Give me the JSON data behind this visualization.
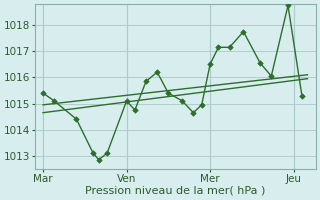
{
  "background_color": "#d8eeee",
  "grid_color": "#b0cccc",
  "line_color": "#2d6e2d",
  "marker_color": "#2d6e2d",
  "title": "Pression niveau de la mer( hPa )",
  "x_tick_labels": [
    "Mar",
    "Ven",
    "Mer",
    "Jeu"
  ],
  "x_tick_positions": [
    0,
    3,
    6,
    9
  ],
  "ylim": [
    1012.5,
    1018.8
  ],
  "yticks": [
    1013,
    1014,
    1015,
    1016,
    1017,
    1018
  ],
  "line1_x": [
    0.0,
    0.4,
    1.2,
    1.8,
    2.0,
    2.3,
    3.0,
    3.3,
    3.7,
    4.1,
    4.5,
    5.0,
    5.4,
    5.7,
    6.0,
    6.3,
    6.7,
    7.2,
    7.8,
    8.2,
    8.8,
    9.3
  ],
  "line1_y": [
    1015.4,
    1015.1,
    1014.4,
    1013.1,
    1012.85,
    1013.1,
    1015.1,
    1014.75,
    1015.85,
    1016.2,
    1015.4,
    1015.1,
    1014.65,
    1014.95,
    1016.5,
    1017.15,
    1017.15,
    1017.75,
    1016.55,
    1016.05,
    1018.75,
    1015.3
  ],
  "trend1_x": [
    0.0,
    9.5
  ],
  "trend1_y": [
    1014.95,
    1016.1
  ],
  "trend2_x": [
    0.0,
    9.5
  ],
  "trend2_y": [
    1014.65,
    1015.95
  ],
  "xlim": [
    -0.3,
    9.8
  ],
  "vline_positions": [
    0,
    3,
    6,
    9
  ]
}
